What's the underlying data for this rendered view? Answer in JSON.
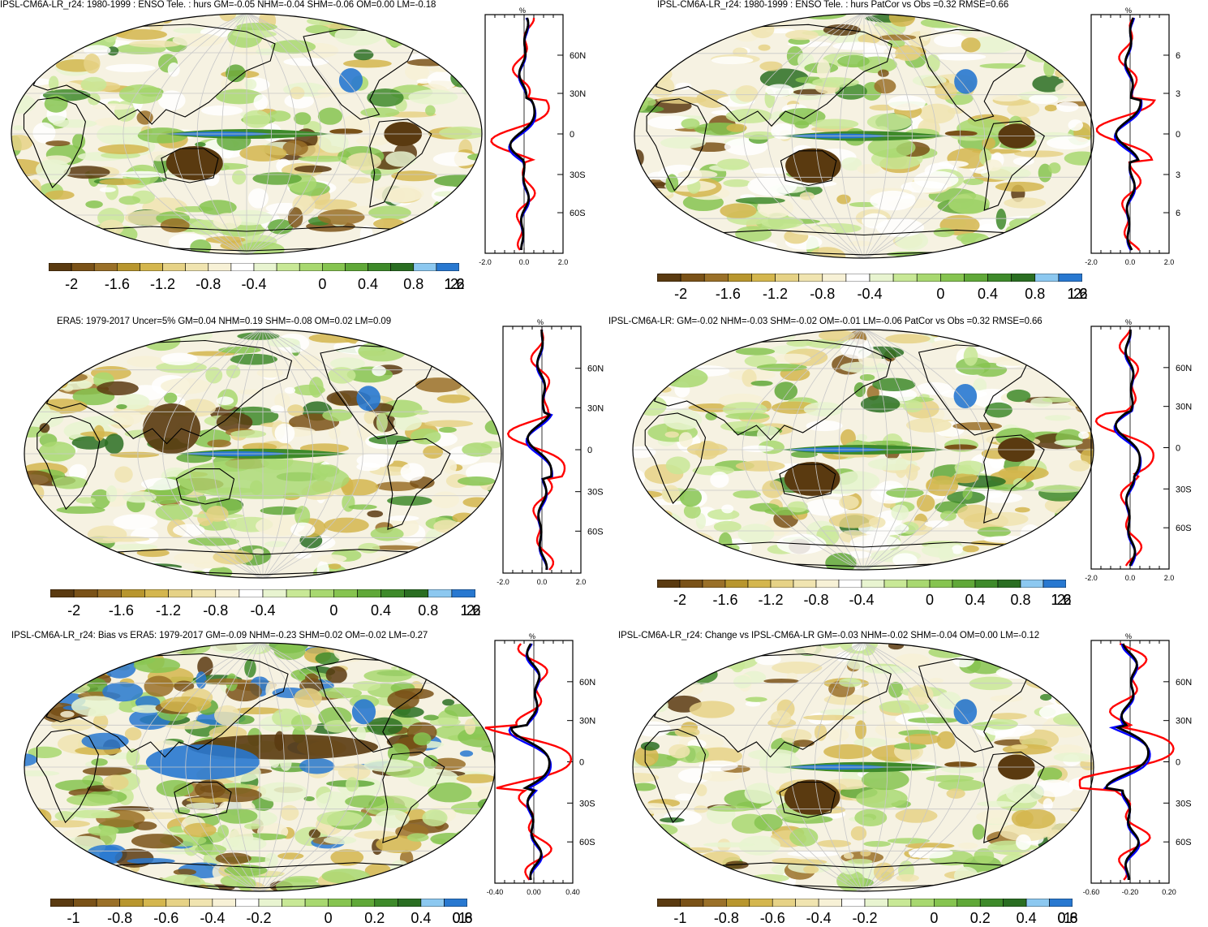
{
  "panels": [
    {
      "title": "IPSL-CM6A-LR_r24: 1980-1999 : ENSO Tele. : hurs GM=-0.05 NHM=-0.04 SHM=-0.06 OM=0.00 LM=-0.18",
      "profile_unit": "%",
      "lat_labels": [
        "60N",
        "30N",
        "0",
        "30S",
        "60S"
      ],
      "x_ticks": [
        "-2.0",
        "0.0",
        "2.0"
      ],
      "colorbar_labels": [
        "-2",
        "-1.6",
        "-1.2",
        "-0.8",
        "-0.4",
        "0",
        "0.4",
        "0.8",
        "1.2",
        "1.6",
        "2"
      ]
    },
    {
      "title": "IPSL-CM6A-LR_r24: 1980-1999 : ENSO Tele. : hurs PatCor vs Obs =0.32 RMSE=0.66",
      "profile_unit": "%",
      "lat_labels": [
        "6",
        "3",
        "0",
        "3",
        "6"
      ],
      "x_ticks": [
        "-2.0",
        "0.0",
        "2.0"
      ],
      "colorbar_labels": [
        "-2",
        "-1.6",
        "-1.2",
        "-0.8",
        "-0.4",
        "0",
        "0.4",
        "0.8",
        "1.2",
        "1.6",
        "2"
      ]
    },
    {
      "title": "ERA5: 1979-2017 Uncer=5% GM=0.04 NHM=0.19 SHM=-0.08 OM=0.02 LM=0.09",
      "profile_unit": "%",
      "lat_labels": [
        "60N",
        "30N",
        "0",
        "30S",
        "60S"
      ],
      "x_ticks": [
        "-2.0",
        "0.0",
        "2.0"
      ],
      "colorbar_labels": [
        "-2",
        "-1.6",
        "-1.2",
        "-0.8",
        "-0.4",
        "0",
        "0.4",
        "0.8",
        "1.2",
        "1.6",
        "2"
      ]
    },
    {
      "title": "IPSL-CM6A-LR: GM=-0.02 NHM=-0.03 SHM=-0.02 OM=-0.01 LM=-0.06 PatCor vs Obs =0.32 RMSE=0.66",
      "profile_unit": "%",
      "lat_labels": [
        "60N",
        "30N",
        "0",
        "30S",
        "60S"
      ],
      "x_ticks": [
        "-2.0",
        "0.0",
        "2.0"
      ],
      "colorbar_labels": [
        "-2",
        "-1.6",
        "-1.2",
        "-0.8",
        "-0.4",
        "0",
        "0.4",
        "0.8",
        "1.2",
        "1.6",
        "2"
      ]
    },
    {
      "title": "IPSL-CM6A-LR_r24: Bias vs ERA5: 1979-2017 GM=-0.09 NHM=-0.23 SHM=0.02 OM=-0.02 LM=-0.27",
      "profile_unit": "%",
      "lat_labels": [
        "60N",
        "30N",
        "0",
        "30S",
        "60S"
      ],
      "x_ticks": [
        "-0.40",
        "0.00",
        "0.40"
      ],
      "colorbar_labels": [
        "-1",
        "-0.8",
        "-0.6",
        "-0.4",
        "-0.2",
        "0",
        "0.2",
        "0.4",
        "0.6",
        "0.8",
        "1"
      ]
    },
    {
      "title": "IPSL-CM6A-LR_r24: Change vs IPSL-CM6A-LR GM=-0.03 NHM=-0.02 SHM=-0.04 OM=0.00 LM=-0.12",
      "profile_unit": "%",
      "lat_labels": [
        "60N",
        "30N",
        "0",
        "30S",
        "60S"
      ],
      "x_ticks": [
        "-0.60",
        "-0.20",
        "0.20"
      ],
      "colorbar_labels": [
        "-1",
        "-0.8",
        "-0.6",
        "-0.4",
        "-0.2",
        "0",
        "0.2",
        "0.4",
        "0.6",
        "0.8",
        "1"
      ]
    }
  ],
  "colors": {
    "palette": [
      "#5a3a10",
      "#7a5218",
      "#9a7028",
      "#b8962e",
      "#d4b64e",
      "#e6d286",
      "#f0e4b0",
      "#f7f1d6",
      "#ffffff",
      "#e8f4d0",
      "#c8e896",
      "#a8d870",
      "#86c450",
      "#60a838",
      "#3e8a2a",
      "#2a6e22",
      "#8cc8f0",
      "#2878d0"
    ],
    "series_red": "#ff0000",
    "series_blue": "#0000ff",
    "series_black": "#000000"
  }
}
